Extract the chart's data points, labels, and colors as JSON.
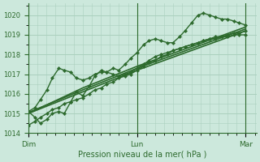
{
  "bg_color": "#cce8dc",
  "grid_color": "#aad0be",
  "line_color": "#2d6a2d",
  "text_color": "#2d6a2d",
  "xlabel": "Pression niveau de la mer( hPa )",
  "ylim": [
    1014,
    1020.6
  ],
  "yticks": [
    1014,
    1015,
    1016,
    1017,
    1018,
    1019,
    1020
  ],
  "xtick_labels": [
    "Dim",
    "Lun",
    "Mar"
  ],
  "xtick_positions": [
    0.0,
    1.0,
    2.0
  ],
  "xlim": [
    0.0,
    2.1
  ],
  "series": [
    {
      "comment": "Main marked line: starts ~1015, dips to 1014.4, rises to 1020.1 peak around x=1.55, then drops to ~1019.5",
      "x": [
        0.0,
        0.06,
        0.11,
        0.17,
        0.22,
        0.28,
        0.33,
        0.39,
        0.44,
        0.5,
        0.56,
        0.61,
        0.67,
        0.72,
        0.78,
        0.83,
        0.89,
        0.94,
        1.0,
        1.06,
        1.11,
        1.17,
        1.22,
        1.28,
        1.33,
        1.39,
        1.44,
        1.5,
        1.56,
        1.61,
        1.67,
        1.72,
        1.78,
        1.83,
        1.89,
        1.94,
        2.0
      ],
      "y": [
        1015.1,
        1014.8,
        1014.5,
        1014.7,
        1015.0,
        1015.1,
        1015.0,
        1015.6,
        1016.1,
        1015.9,
        1016.4,
        1016.9,
        1017.2,
        1017.1,
        1017.3,
        1017.2,
        1017.5,
        1017.8,
        1018.1,
        1018.5,
        1018.7,
        1018.8,
        1018.7,
        1018.6,
        1018.6,
        1018.9,
        1019.2,
        1019.6,
        1020.0,
        1020.1,
        1020.0,
        1019.9,
        1019.8,
        1019.8,
        1019.7,
        1019.6,
        1019.5
      ],
      "marker": "D",
      "lw": 1.0,
      "ms": 2.2
    },
    {
      "comment": "Straight rising line 1 - nearly linear from 1015 to 1019.2",
      "x": [
        0.0,
        0.5,
        1.0,
        1.5,
        2.0
      ],
      "y": [
        1015.0,
        1016.1,
        1017.2,
        1018.2,
        1019.2
      ],
      "marker": null,
      "lw": 1.2,
      "ms": 0
    },
    {
      "comment": "Straight rising line 2 - nearly linear from 1015 to 1019.3",
      "x": [
        0.0,
        0.5,
        1.0,
        1.5,
        2.0
      ],
      "y": [
        1015.05,
        1016.2,
        1017.3,
        1018.3,
        1019.3
      ],
      "marker": null,
      "lw": 1.2,
      "ms": 0
    },
    {
      "comment": "Straight rising line 3 - from 1015 to 1019.4",
      "x": [
        0.0,
        0.5,
        1.0,
        1.5,
        2.0
      ],
      "y": [
        1015.0,
        1016.3,
        1017.4,
        1018.4,
        1019.4
      ],
      "marker": null,
      "lw": 1.2,
      "ms": 0
    },
    {
      "comment": "Second marked line: starts 1015, bumps up to ~1017.3 around x=0.25, then continues rising more slowly to ~1019.0",
      "x": [
        0.0,
        0.06,
        0.11,
        0.17,
        0.22,
        0.28,
        0.33,
        0.39,
        0.44,
        0.5,
        0.56,
        0.61,
        0.67,
        0.72,
        0.78,
        0.83,
        0.89,
        0.94,
        1.0,
        1.06,
        1.11,
        1.17,
        1.22,
        1.28,
        1.33,
        1.39,
        1.44,
        1.5,
        1.56,
        1.61,
        1.67,
        1.72,
        1.78,
        1.83,
        1.89,
        1.94,
        2.0
      ],
      "y": [
        1015.1,
        1015.3,
        1015.7,
        1016.2,
        1016.8,
        1017.3,
        1017.2,
        1017.1,
        1016.8,
        1016.7,
        1016.8,
        1017.0,
        1017.1,
        1017.1,
        1017.0,
        1016.9,
        1017.0,
        1017.1,
        1017.3,
        1017.5,
        1017.7,
        1017.9,
        1018.0,
        1018.1,
        1018.2,
        1018.3,
        1018.4,
        1018.5,
        1018.6,
        1018.7,
        1018.8,
        1018.8,
        1018.9,
        1018.9,
        1019.0,
        1019.0,
        1019.0
      ],
      "marker": "D",
      "lw": 1.0,
      "ms": 2.2
    },
    {
      "comment": "Third marked line: starts 1014.4, rises with some wiggles, ends ~1019.2",
      "x": [
        0.0,
        0.06,
        0.11,
        0.17,
        0.22,
        0.28,
        0.33,
        0.39,
        0.44,
        0.5,
        0.56,
        0.61,
        0.67,
        0.72,
        0.78,
        0.83,
        0.89,
        0.94,
        1.0,
        1.06,
        1.11,
        1.17,
        1.22,
        1.28,
        1.33,
        1.39,
        1.44,
        1.5,
        1.56,
        1.61,
        1.67,
        1.72,
        1.78,
        1.83,
        1.89,
        1.94,
        2.0
      ],
      "y": [
        1014.4,
        1014.6,
        1014.8,
        1015.0,
        1015.2,
        1015.3,
        1015.5,
        1015.6,
        1015.7,
        1015.8,
        1016.0,
        1016.2,
        1016.3,
        1016.5,
        1016.6,
        1016.8,
        1016.9,
        1017.0,
        1017.2,
        1017.4,
        1017.6,
        1017.7,
        1017.9,
        1018.0,
        1018.2,
        1018.3,
        1018.4,
        1018.5,
        1018.6,
        1018.7,
        1018.8,
        1018.9,
        1018.9,
        1019.0,
        1019.1,
        1019.1,
        1019.2
      ],
      "marker": "D",
      "lw": 1.0,
      "ms": 2.2
    }
  ]
}
